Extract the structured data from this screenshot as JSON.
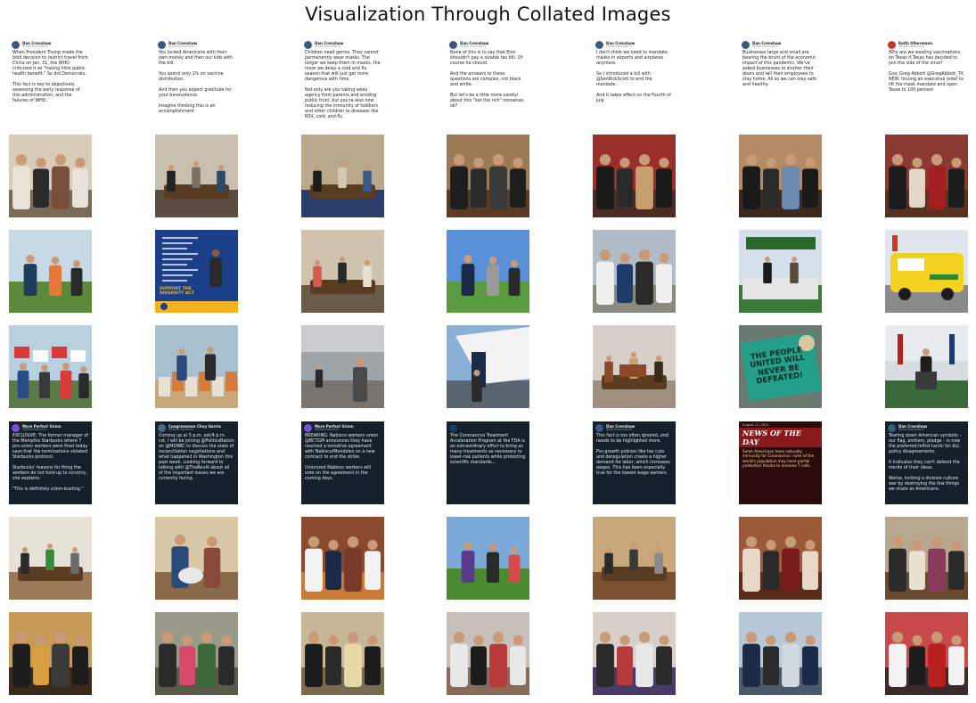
{
  "title": "Visualization Through Collated Images",
  "grid": {
    "rows": 7,
    "cols": 7,
    "tiles": [
      {
        "kind": "tweet",
        "theme": "light",
        "name": "Dan Crenshaw",
        "handle": "@DanCrenshawTX",
        "avatar": "#3a5a80",
        "text": "When President Trump made the bold decision to restrict travel from China on Jan. 31, the WHO criticized it as \"having little public health benefit.\" So did Democrats.\n\nThis fact is key to objectively assessing the early response of this administration, and the failures of WHO."
      },
      {
        "kind": "tweet",
        "theme": "light",
        "name": "Dan Crenshaw",
        "handle": "@DanCrenshawTX",
        "avatar": "#3a5a80",
        "text": "You locked Americans with their own money and then our kids with the bill.\n\nYou spend only 1% on vaccine distribution.\n\nAnd then you expect gratitude for your benevolence\n\nImagine thinking this is an accomplishment"
      },
      {
        "kind": "tweet",
        "theme": "light",
        "name": "Dan Crenshaw",
        "handle": "@DanCrenshawTX",
        "avatar": "#3a5a80",
        "text": "Children need germs. They cannot permanently wear masks. The longer we keep them in masks, the more we delay a cold and flu season that will just get more dangerous with time.\n\nNot only are you taking away agency from parents and eroding public trust, but you're also now reducing the immunity of toddlers and other children to diseases like RSV, cold, and flu."
      },
      {
        "kind": "tweet",
        "theme": "light",
        "name": "Dan Crenshaw",
        "handle": "@DanCrenshawTX",
        "avatar": "#3a5a80",
        "text": "None of this is to say that Elon shouldn't pay a sizable tax bill. Of course he should.\n\nAnd the answers to these questions are complex, not black and white.\n\nBut let's be a little more careful about this \"eat the rich\" nonsense, ok?"
      },
      {
        "kind": "tweet",
        "theme": "light",
        "name": "Dan Crenshaw",
        "handle": "@DanCrenshawTX",
        "avatar": "#3a5a80",
        "text": "I don't think we need to mandate masks in airports and airplanes anymore.\n\nSo I introduced a bill with @SenRickScott to end the mandate.\n\nAnd it takes effect on the Fourth of July."
      },
      {
        "kind": "tweet",
        "theme": "light",
        "name": "Dan Crenshaw",
        "handle": "@DanCrenshawTX",
        "avatar": "#3a5a80",
        "text": "Businesses large and small are bearing the brunt of the economic impact of this pandemic. We've asked businesses to shutter their doors and tell their employees to stay home. All so we can stay safe and healthy."
      },
      {
        "kind": "tweet",
        "theme": "light",
        "name": "Keith Olbermann",
        "handle": "@KeithOlbermann",
        "avatar": "#c0392b",
        "text": "Why are we wasting vaccinations on Texas if Texas has decided to join the side of the virus?\n\nGov. Greg Abbott @GregAbbott_TX\nNEW: Issuing an executive order to lift the mask mandate and open Texas to 100 percent"
      },
      {
        "kind": "photo",
        "scene": "group",
        "sky": "#d8cbb7",
        "ground": "#7a6a58",
        "p": [
          "#e8e2d8",
          "#2a2a2a",
          "#7a4f3a"
        ]
      },
      {
        "kind": "photo",
        "scene": "meeting",
        "sky": "#c9bfae",
        "ground": "#5a4e42",
        "p": [
          "#222",
          "#7d7063",
          "#2e4a6a"
        ]
      },
      {
        "kind": "photo",
        "scene": "meeting",
        "sky": "#b9a88c",
        "ground": "#2c3e6a",
        "p": [
          "#1c1c1c",
          "#d5c7b0",
          "#3b5a8a"
        ]
      },
      {
        "kind": "photo",
        "scene": "group",
        "sky": "#9c7a55",
        "ground": "#5d3a22",
        "p": [
          "#1e1e1e",
          "#2b2b2b",
          "#3a3a3a"
        ]
      },
      {
        "kind": "photo",
        "scene": "group",
        "sky": "#9a2f2a",
        "ground": "#4d2a22",
        "p": [
          "#1a1a1a",
          "#2a2a2a",
          "#c8a070"
        ]
      },
      {
        "kind": "photo",
        "scene": "group",
        "sky": "#b48b64",
        "ground": "#3e2a1c",
        "p": [
          "#1a1a1a",
          "#2a2a2a",
          "#6a8ab0"
        ]
      },
      {
        "kind": "photo",
        "scene": "group",
        "sky": "#8a3a30",
        "ground": "#5a3020",
        "p": [
          "#1c1c1c",
          "#e4d8c8",
          "#a02020"
        ]
      },
      {
        "kind": "photo",
        "scene": "field",
        "sky": "#c8d9e6",
        "ground": "#5d8a3a",
        "p": [
          "#1f3a5a",
          "#e47a3a",
          "#2a2a2a"
        ]
      },
      {
        "kind": "poster",
        "bg": "#1c3f8a",
        "band": "#f4b223",
        "text": "SUPPORT THE DIVERSITY ACT"
      },
      {
        "kind": "photo",
        "scene": "meeting",
        "sky": "#cfc3b0",
        "ground": "#6a5a48",
        "p": [
          "#d45a4a",
          "#2a2a2a",
          "#e8e0d0"
        ]
      },
      {
        "kind": "photo",
        "scene": "field",
        "sky": "#5a90d8",
        "ground": "#5a9a40",
        "p": [
          "#1c2a4a",
          "#9a9a9a",
          "#2a2a2a"
        ]
      },
      {
        "kind": "photo",
        "scene": "group",
        "sky": "#b0bcc8",
        "ground": "#8a8a80",
        "p": [
          "#f0f0f0",
          "#1e3a6a",
          "#2a2a2a"
        ]
      },
      {
        "kind": "photo",
        "scene": "stand",
        "sky": "#d6e0ea",
        "ground": "#3a7a3a",
        "p": [
          "#2a6a30",
          "#e6e6e6",
          "#1a1a1a"
        ]
      },
      {
        "kind": "photo",
        "scene": "truck",
        "sky": "#dfe6ee",
        "ground": "#8a8a8a",
        "p": [
          "#f2d21e",
          "#2a8a3a",
          "#c83a2a"
        ]
      },
      {
        "kind": "photo",
        "scene": "signs",
        "sky": "#b8d0e0",
        "ground": "#5a7a48",
        "p": [
          "#d83a3a",
          "#ffffff",
          "#2a4a8a"
        ]
      },
      {
        "kind": "photo",
        "scene": "boxes",
        "sky": "#a8c0d0",
        "ground": "#c8a878",
        "p": [
          "#e8e0d0",
          "#d87a3a",
          "#2a4a7a"
        ]
      },
      {
        "kind": "photo",
        "scene": "hangar",
        "sky": "#9ea4a8",
        "ground": "#7a7470",
        "p": [
          "#2a2a2a",
          "#d0d0d0",
          "#4a4a4a"
        ]
      },
      {
        "kind": "photo",
        "scene": "plane",
        "sky": "#8ab0d8",
        "ground": "#5a6470",
        "p": [
          "#f2f2f2",
          "#1c2a4a",
          "#2a2a2a"
        ]
      },
      {
        "kind": "photo",
        "scene": "table",
        "sky": "#d8d0c8",
        "ground": "#a09080",
        "p": [
          "#8a4a2a",
          "#c8a070",
          "#3a2a1a"
        ]
      },
      {
        "kind": "sign",
        "bg": "#24a08a",
        "text": "THE PEOPLE UNITED WILL NEVER BE DEFEATED!"
      },
      {
        "kind": "photo",
        "scene": "stage",
        "sky": "#d8dde2",
        "ground": "#3a6a3a",
        "p": [
          "#1c1c1c",
          "#b82020",
          "#e8e8e8"
        ]
      },
      {
        "kind": "tweet",
        "theme": "dark",
        "name": "More Perfect Union",
        "handle": "@MorePerfectUS",
        "avatar": "#7b4dd8",
        "text": "EXCLUSIVE: The former manager of the Memphis Starbucks where 7 pro-union workers were fired today says that the terminations violated Starbucks protocol.\n\nStarbucks' reasons for firing the workers do not hold up to scrutiny, she explains.\n\n\"This is definitely union-busting.\""
      },
      {
        "kind": "tweet",
        "theme": "dark",
        "name": "Congressman Chuy Garcia",
        "handle": "@RepChuyGarcia",
        "avatar": "#4a6a8a",
        "text": "Coming up at 5 p.m. est/4 p.m. cst, I will be joining @PoliticsNation on @MSNBC to discuss the state of reconciliation negotiations and what happened in Washington this past week. Looking forward to talking with @TheRevAl about all of the important issues we are currently facing."
      },
      {
        "kind": "tweet",
        "theme": "dark",
        "name": "More Perfect Union",
        "handle": "@MorePerfectUS",
        "avatar": "#7b4dd8",
        "text": "BREAKING: Nabisco workers union @BCTGM announces they have reached a tentative agreement with Nabisco/Mondelez on a new contract to end the strike.\n\nUnionized Nabisco workers will vote on the agreement in the coming days."
      },
      {
        "kind": "tweet",
        "theme": "dark",
        "name": "",
        "handle": "",
        "avatar": "#1c3a6a",
        "text": "The Coronavirus Treatment Acceleration Program at the FDA is an extraordinary effort to bring as many treatments as necessary to lower-risk patients while protecting scientific standards..."
      },
      {
        "kind": "tweet",
        "theme": "dark",
        "name": "Dan Crenshaw",
        "handle": "@DanCrenshawTX",
        "avatar": "#3a5a80",
        "text": "This fact is too often ignored, and needs to be highlighted more:\n\nPro-growth policies like tax cuts and deregulation create a higher demand for labor, which increases wages. This has been especially true for the lowest wage earners."
      },
      {
        "kind": "news",
        "bg": "#2a0a0a",
        "band": "#8a1a1a",
        "head": "NEWS OF THE DAY",
        "date": "August 11, 2021",
        "text": "Some Americans have naturally immunity for Coronavirus: none of the world's population may have partial protection thanks to immune T cells."
      },
      {
        "kind": "tweet",
        "theme": "dark",
        "name": "Dan Crenshaw",
        "handle": "@DanCrenshawTX",
        "avatar": "#3a5a80",
        "text": "Tearing down American symbols – our flag, anthem, pledge – is now the preferred leftist tactic for ALL policy disagreements.\n\nIt indicates they can't defend the merits of their ideas.\n\nWorse, inciting a divisive culture war by destroying the few things we share as Americans."
      },
      {
        "kind": "photo",
        "scene": "meeting",
        "sky": "#e6e2d8",
        "ground": "#9a7a58",
        "p": [
          "#2a2a2a",
          "#3a8a3a",
          "#6a6a6a"
        ]
      },
      {
        "kind": "photo",
        "scene": "pets",
        "sky": "#d8c8a8",
        "ground": "#8a6a48",
        "p": [
          "#2a4a7a",
          "#8a4a3a",
          "#e8e8e8"
        ]
      },
      {
        "kind": "photo",
        "scene": "group",
        "sky": "#8a4a30",
        "ground": "#c87a3a",
        "p": [
          "#f2f2f2",
          "#1c2a4a",
          "#7a3a2a"
        ]
      },
      {
        "kind": "photo",
        "scene": "field",
        "sky": "#7aa8d8",
        "ground": "#4a8a30",
        "p": [
          "#5a3a8a",
          "#2a2a2a",
          "#d84a4a"
        ]
      },
      {
        "kind": "photo",
        "scene": "meeting",
        "sky": "#c8a878",
        "ground": "#7a5030",
        "p": [
          "#2a2a2a",
          "#3a3a3a",
          "#8a8a8a"
        ]
      },
      {
        "kind": "photo",
        "scene": "group",
        "sky": "#9a5a38",
        "ground": "#5a2a1a",
        "p": [
          "#e8d8c8",
          "#2a2a2a",
          "#7a1a1a"
        ]
      },
      {
        "kind": "photo",
        "scene": "group",
        "sky": "#b8a890",
        "ground": "#6a4a30",
        "p": [
          "#2a2a2a",
          "#e8e0d0",
          "#8a3a5a"
        ]
      },
      {
        "kind": "photo",
        "scene": "group",
        "sky": "#c89a58",
        "ground": "#3a2a1a",
        "p": [
          "#1c1c1c",
          "#d8a040",
          "#3a3a3a"
        ]
      },
      {
        "kind": "photo",
        "scene": "group",
        "sky": "#9a9a8a",
        "ground": "#5a5a4a",
        "p": [
          "#2a2a2a",
          "#d84a6a",
          "#3a6a3a"
        ]
      },
      {
        "kind": "photo",
        "scene": "group",
        "sky": "#c8b898",
        "ground": "#7a6a50",
        "p": [
          "#1c1c1c",
          "#2a2a2a",
          "#e8d8a8"
        ]
      },
      {
        "kind": "photo",
        "scene": "group",
        "sky": "#c8c0b8",
        "ground": "#8a6a58",
        "p": [
          "#e8e8e8",
          "#1c1c1c",
          "#b83a3a"
        ]
      },
      {
        "kind": "photo",
        "scene": "group",
        "sky": "#d8d0c8",
        "ground": "#4a3a6a",
        "p": [
          "#2a2a2a",
          "#b83a3a",
          "#e8e8e8"
        ]
      },
      {
        "kind": "photo",
        "scene": "group",
        "sky": "#b8c8d8",
        "ground": "#4a5a6a",
        "p": [
          "#1c2a4a",
          "#2a2a2a",
          "#d0d8e0"
        ]
      },
      {
        "kind": "photo",
        "scene": "group",
        "sky": "#c84a4a",
        "ground": "#3a2a2a",
        "p": [
          "#f2f2f2",
          "#1c1c1c",
          "#b82020"
        ]
      }
    ]
  }
}
